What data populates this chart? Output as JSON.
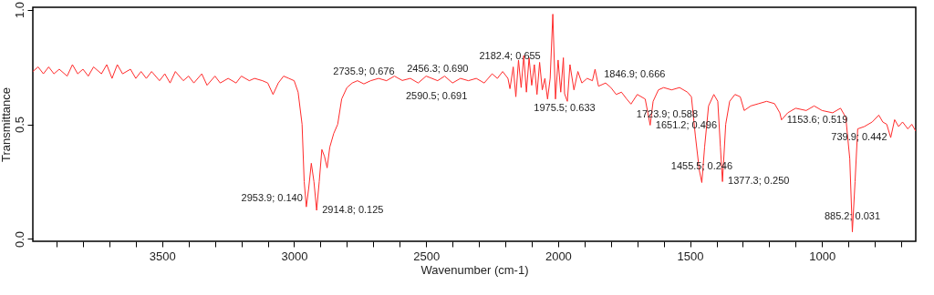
{
  "chart_data": {
    "type": "line",
    "xlabel": "Wavenumber (cm-1)",
    "ylabel": "Transmittance",
    "xlim": [
      3990,
      645
    ],
    "ylim": [
      -0.01,
      1.01
    ],
    "xticks": [
      {
        "value": 3900,
        "label": null
      },
      {
        "value": 3800,
        "label": null
      },
      {
        "value": 3700,
        "label": null
      },
      {
        "value": 3600,
        "label": null
      },
      3500,
      {
        "value": 3400,
        "label": null
      },
      {
        "value": 3300,
        "label": null
      },
      {
        "value": 3200,
        "label": null
      },
      {
        "value": 3100,
        "label": null
      },
      3000,
      {
        "value": 2900,
        "label": null
      },
      {
        "value": 2800,
        "label": null
      },
      {
        "value": 2700,
        "label": null
      },
      {
        "value": 2600,
        "label": null
      },
      2500,
      {
        "value": 2400,
        "label": null
      },
      {
        "value": 2300,
        "label": null
      },
      {
        "value": 2200,
        "label": null
      },
      {
        "value": 2100,
        "label": null
      },
      2000,
      {
        "value": 1900,
        "label": null
      },
      {
        "value": 1800,
        "label": null
      },
      {
        "value": 1700,
        "label": null
      },
      {
        "value": 1600,
        "label": null
      },
      1500,
      {
        "value": 1400,
        "label": null
      },
      {
        "value": 1300,
        "label": null
      },
      {
        "value": 1200,
        "label": null
      },
      {
        "value": 1100,
        "label": null
      },
      1000,
      {
        "value": 900,
        "label": null
      },
      {
        "value": 800,
        "label": null
      },
      {
        "value": 700,
        "label": null
      }
    ],
    "yticks": [
      {
        "value": 0,
        "label": "0.0"
      },
      {
        "value": 0.5,
        "label": "0.5"
      },
      {
        "value": 1,
        "label": "1.0"
      }
    ],
    "grid": false,
    "marker": "none",
    "line_style": "solid",
    "series": [
      {
        "color": "#ff2a2a",
        "x": [
          3990,
          3970,
          3950,
          3930,
          3910,
          3890,
          3860,
          3840,
          3820,
          3800,
          3780,
          3760,
          3730,
          3710,
          3690,
          3670,
          3650,
          3620,
          3600,
          3580,
          3560,
          3540,
          3510,
          3490,
          3470,
          3450,
          3420,
          3400,
          3380,
          3350,
          3330,
          3300,
          3280,
          3250,
          3220,
          3200,
          3170,
          3150,
          3120,
          3100,
          3080,
          3060,
          3040,
          3020,
          3000,
          2985,
          2970,
          2962,
          2953.9,
          2945,
          2935,
          2925,
          2914.8,
          2905,
          2895,
          2885,
          2875,
          2865,
          2850,
          2835,
          2820,
          2800,
          2780,
          2760,
          2735.9,
          2710,
          2680,
          2650,
          2620,
          2590.5,
          2560,
          2530,
          2500,
          2456.3,
          2430,
          2400,
          2370,
          2340,
          2310,
          2280,
          2250,
          2230,
          2210,
          2190,
          2182.4,
          2170,
          2160,
          2150,
          2140,
          2130,
          2120,
          2110,
          2100,
          2090,
          2080,
          2070,
          2060,
          2050,
          2040,
          2030,
          2020,
          2010,
          2000,
          1990,
          1980,
          1975.5,
          1965,
          1955,
          1940,
          1925,
          1910,
          1890,
          1870,
          1860,
          1846.9,
          1820,
          1800,
          1780,
          1760,
          1740,
          1723.9,
          1700,
          1670,
          1651.2,
          1640,
          1620,
          1600,
          1570,
          1540,
          1510,
          1495,
          1480,
          1465,
          1455.5,
          1445,
          1430,
          1410,
          1395,
          1385,
          1377.3,
          1365,
          1350,
          1330,
          1310,
          1295,
          1270,
          1240,
          1210,
          1180,
          1160,
          1153.6,
          1130,
          1100,
          1060,
          1030,
          1000,
          960,
          930,
          910,
          895,
          885.2,
          875,
          865,
          840,
          810,
          785,
          770,
          755,
          739.9,
          725,
          710,
          695,
          675,
          660,
          645
        ],
        "values": [
          0.73,
          0.75,
          0.72,
          0.75,
          0.72,
          0.74,
          0.71,
          0.76,
          0.72,
          0.74,
          0.71,
          0.75,
          0.72,
          0.76,
          0.7,
          0.76,
          0.72,
          0.74,
          0.7,
          0.73,
          0.7,
          0.73,
          0.69,
          0.72,
          0.68,
          0.73,
          0.69,
          0.71,
          0.68,
          0.72,
          0.67,
          0.71,
          0.68,
          0.7,
          0.68,
          0.71,
          0.69,
          0.7,
          0.69,
          0.68,
          0.63,
          0.68,
          0.71,
          0.7,
          0.69,
          0.64,
          0.5,
          0.25,
          0.14,
          0.22,
          0.33,
          0.25,
          0.125,
          0.25,
          0.39,
          0.36,
          0.31,
          0.4,
          0.46,
          0.5,
          0.61,
          0.66,
          0.68,
          0.69,
          0.676,
          0.69,
          0.7,
          0.69,
          0.71,
          0.691,
          0.7,
          0.68,
          0.71,
          0.69,
          0.71,
          0.68,
          0.7,
          0.69,
          0.7,
          0.68,
          0.72,
          0.7,
          0.73,
          0.7,
          0.655,
          0.75,
          0.62,
          0.78,
          0.66,
          0.8,
          0.64,
          0.79,
          0.67,
          0.76,
          0.63,
          0.77,
          0.65,
          0.7,
          0.61,
          0.7,
          0.98,
          0.61,
          0.78,
          0.64,
          0.79,
          0.633,
          0.6,
          0.76,
          0.65,
          0.73,
          0.68,
          0.7,
          0.69,
          0.74,
          0.666,
          0.68,
          0.66,
          0.63,
          0.64,
          0.61,
          0.588,
          0.63,
          0.61,
          0.496,
          0.6,
          0.65,
          0.66,
          0.65,
          0.66,
          0.64,
          0.62,
          0.45,
          0.3,
          0.246,
          0.4,
          0.58,
          0.63,
          0.6,
          0.4,
          0.25,
          0.5,
          0.6,
          0.63,
          0.62,
          0.56,
          0.58,
          0.59,
          0.6,
          0.59,
          0.55,
          0.519,
          0.55,
          0.57,
          0.56,
          0.58,
          0.56,
          0.55,
          0.57,
          0.53,
          0.35,
          0.031,
          0.25,
          0.48,
          0.49,
          0.51,
          0.54,
          0.51,
          0.5,
          0.442,
          0.52,
          0.49,
          0.51,
          0.48,
          0.5,
          0.47
        ]
      }
    ],
    "annotations": [
      {
        "text": "2953.9; 0.140",
        "x": 2953.9,
        "y": 0.14
      },
      {
        "text": "2914.8; 0.125",
        "x": 2914.8,
        "y": 0.125
      },
      {
        "text": "2735.9; 0.676",
        "x": 2735.9,
        "y": 0.676
      },
      {
        "text": "2590.5; 0.691",
        "x": 2590.5,
        "y": 0.691
      },
      {
        "text": "2456.3; 0.690",
        "x": 2456.3,
        "y": 0.69
      },
      {
        "text": "2182.4; 0.655",
        "x": 2182.4,
        "y": 0.655
      },
      {
        "text": "1975.5; 0.633",
        "x": 1975.5,
        "y": 0.633
      },
      {
        "text": "1846.9; 0.666",
        "x": 1846.9,
        "y": 0.666
      },
      {
        "text": "1723.9; 0.588",
        "x": 1723.9,
        "y": 0.588
      },
      {
        "text": "1651.2; 0.496",
        "x": 1651.2,
        "y": 0.496
      },
      {
        "text": "1455.5; 0.246",
        "x": 1455.5,
        "y": 0.246
      },
      {
        "text": "1377.3; 0.250",
        "x": 1377.3,
        "y": 0.25
      },
      {
        "text": "1153.6; 0.519",
        "x": 1153.6,
        "y": 0.519
      },
      {
        "text": "885.2; 0.031",
        "x": 885.2,
        "y": 0.031
      },
      {
        "text": "739.9; 0.442",
        "x": 739.9,
        "y": 0.442
      }
    ]
  }
}
